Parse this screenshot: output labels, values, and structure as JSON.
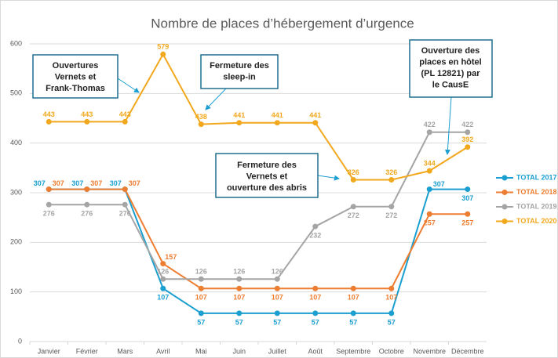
{
  "chart_data": {
    "type": "line",
    "title": "Nombre de places d’hébergement d’urgence",
    "categories": [
      "Janvier",
      "Février",
      "Mars",
      "Avril",
      "Mai",
      "Juin",
      "Juillet",
      "Août",
      "Septembre",
      "Octobre",
      "Novembre",
      "Décembre"
    ],
    "series": [
      {
        "name": "TOTAL 2017",
        "color": "#1a9fd0",
        "values": [
          307,
          307,
          307,
          107,
          57,
          57,
          57,
          57,
          57,
          57,
          307,
          307
        ]
      },
      {
        "name": "TOTAL 2018",
        "color": "#ed7d31",
        "values": [
          307,
          307,
          307,
          157,
          107,
          107,
          107,
          107,
          107,
          107,
          257,
          257
        ]
      },
      {
        "name": "TOTAL 2019",
        "color": "#a5a5a5",
        "values": [
          276,
          276,
          276,
          126,
          126,
          126,
          126,
          232,
          272,
          272,
          422,
          422
        ]
      },
      {
        "name": "TOTAL 2020",
        "color": "#f2a81d",
        "values": [
          443,
          443,
          443,
          579,
          438,
          441,
          441,
          441,
          326,
          326,
          344,
          392
        ]
      }
    ],
    "ylim": [
      0,
      600
    ],
    "yticks": [
      0,
      100,
      200,
      300,
      400,
      500,
      600
    ],
    "grid": true,
    "legend": "right",
    "annotations": [
      {
        "text": [
          "Ouvertures",
          "Vernets et",
          "Frank-Thomas"
        ]
      },
      {
        "text": [
          "Fermeture des",
          "sleep-in"
        ]
      },
      {
        "text": [
          "Fermeture des",
          "Vernets et",
          "ouverture des abris"
        ]
      },
      {
        "text": [
          "Ouverture des",
          "places en hôtel",
          "(PL 12821) par",
          "le CausE"
        ]
      }
    ]
  }
}
